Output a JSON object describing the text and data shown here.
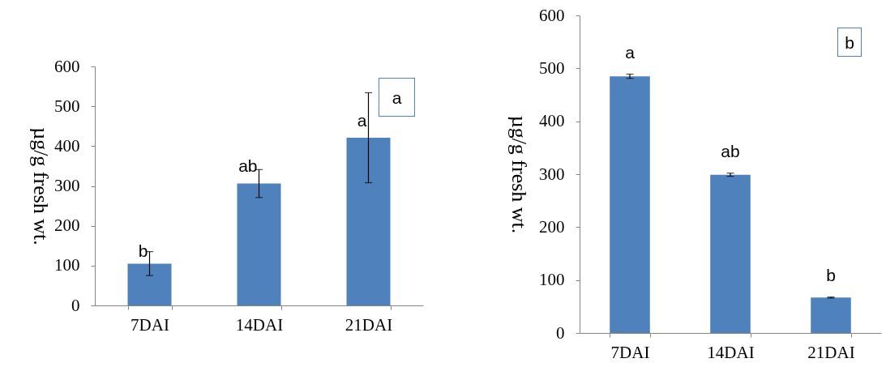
{
  "chart_data": [
    {
      "type": "bar",
      "categories": [
        "7DAI",
        "14DAI",
        "21DAI"
      ],
      "values": [
        105,
        306,
        421
      ],
      "errors": [
        30,
        35,
        113
      ],
      "color": "#4f81bd",
      "ylabel": "µg/g fresh wt.",
      "ylim": [
        0,
        600
      ],
      "yticks": [
        0,
        100,
        200,
        300,
        400,
        500,
        600
      ],
      "annotations": [
        "a",
        {
          "text": "b",
          "x": "7DAI",
          "y": 135
        },
        {
          "text": "ab",
          "x": "14DAI",
          "y": 347
        },
        {
          "text": "a",
          "x": "21DAI",
          "y": 462
        }
      ]
    },
    {
      "type": "bar",
      "categories": [
        "7DAI",
        "14DAI",
        "21DAI"
      ],
      "values": [
        485,
        299,
        67
      ],
      "errors": [
        4,
        3,
        1
      ],
      "color": "#4f81bd",
      "ylabel": "µg/g fresh wt.",
      "ylim": [
        0,
        600
      ],
      "yticks": [
        0,
        100,
        200,
        300,
        400,
        500,
        600
      ],
      "annotations": [
        "b",
        {
          "text": "a",
          "x": "7DAI",
          "y": 485
        },
        {
          "text": "ab",
          "x": "14DAI",
          "y": 299
        },
        {
          "text": "b",
          "x": "21DAI",
          "y": 67
        }
      ]
    }
  ]
}
